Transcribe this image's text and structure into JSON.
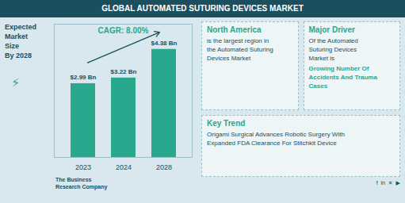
{
  "chart_data": {
    "type": "bar",
    "title": "GLOBAL AUTOMATED SUTURING DEVICES MARKET",
    "categories": [
      "2023",
      "2024",
      "2028"
    ],
    "values": [
      2.99,
      3.22,
      4.38
    ],
    "value_labels": [
      "$2.99 Bn",
      "$3.22 Bn",
      "$4.38 Bn"
    ],
    "data_labels": true,
    "color": "#29a88e",
    "ylim": [
      0,
      5.4
    ],
    "tick_labels": "x",
    "annotations": [
      "Expected\nMarket\nSize\nBy 2028",
      "⚡",
      "CAGR: 8.00%",
      "North America",
      "is the largest region in\nthe Automated Suturing\nDevices Market",
      "Major Driver",
      "Of the Automated\nSuturing Devices\nMarket is",
      "Growing Number Of\nAccidents And Trauma\nCases",
      "Key Trend",
      "Origami Surgical Advances Robotic Surgery With\nExpanded FDA Clearance For Stitchkit Device",
      "The Business",
      "Research Company",
      "f  in  ✕  ▶"
    ]
  }
}
